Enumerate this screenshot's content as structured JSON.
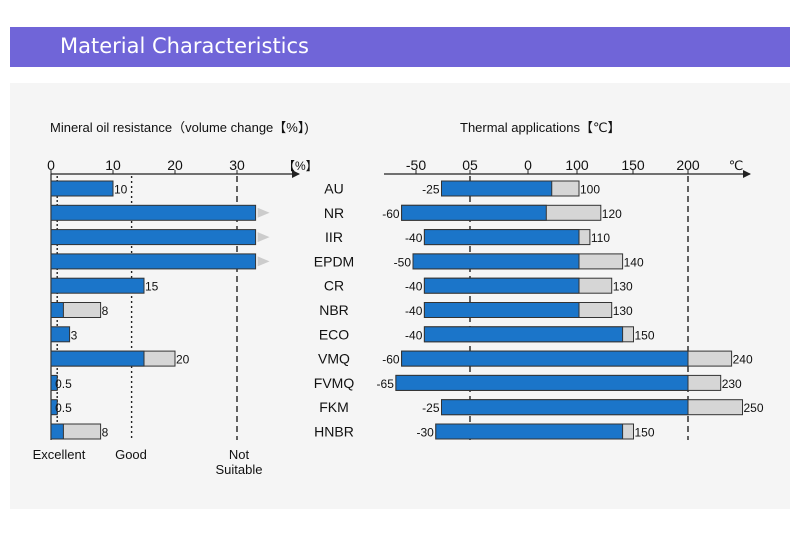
{
  "header": {
    "title": "Material Characteristics"
  },
  "colors": {
    "header_bg": "#7065d8",
    "bar_blue": "#1b75c9",
    "bar_gray": "#d6d6d6"
  },
  "chart_data": [
    {
      "type": "bar",
      "title": "Mineral oil resistance（volume change【%】)",
      "orientation": "horizontal",
      "unit_label": "【%】",
      "xlim": [
        0,
        35
      ],
      "x_ticks": [
        "0",
        "10",
        "20",
        "30"
      ],
      "thresholds": [
        {
          "value": 1,
          "label": "Excellent"
        },
        {
          "value": 13,
          "label": "Good"
        },
        {
          "value": 30,
          "label": "Not Suitable"
        }
      ],
      "categories": [
        "AU",
        "NR",
        "IIR",
        "EPDM",
        "CR",
        "NBR",
        "ECO",
        "VMQ",
        "FVMQ",
        "FKM",
        "HNBR"
      ],
      "series": [
        {
          "values": [
            10,
            null,
            null,
            null,
            15,
            2,
            3,
            15,
            1,
            1,
            2
          ]
        },
        {
          "values": [
            10,
            33,
            33,
            33,
            15,
            8,
            3,
            20,
            0.5,
            0.5,
            8
          ]
        }
      ],
      "value_labels": [
        "10",
        "",
        "",
        "",
        "15",
        "8",
        "3",
        "20",
        "0.5",
        "0.5",
        "8"
      ],
      "overflow": [
        false,
        true,
        true,
        true,
        false,
        false,
        false,
        false,
        false,
        false,
        false
      ]
    },
    {
      "type": "bar",
      "title": "Thermal applications【℃】",
      "orientation": "horizontal",
      "unit_label": "℃",
      "x_ticks": [
        "-50",
        "05",
        "0",
        "100",
        "150",
        "200"
      ],
      "categories": [
        "AU",
        "NR",
        "IIR",
        "EPDM",
        "CR",
        "NBR",
        "ECO",
        "VMQ",
        "FVMQ",
        "FKM",
        "HNBR"
      ],
      "min_temp": [
        -25,
        -60,
        -40,
        -50,
        -40,
        -40,
        -40,
        -60,
        -65,
        -25,
        -30
      ],
      "continuous_max": [
        75,
        70,
        100,
        100,
        100,
        100,
        140,
        200,
        200,
        200,
        140
      ],
      "short_term_max": [
        100,
        120,
        110,
        140,
        130,
        130,
        150,
        240,
        230,
        250,
        150
      ],
      "min_labels": [
        "-25",
        "-60",
        "-40",
        "-50",
        "-40",
        "-40",
        "-40",
        "-60",
        "-65",
        "-25",
        "-30"
      ],
      "max_labels": [
        "100",
        "120",
        "110",
        "140",
        "130",
        "130",
        "150",
        "240",
        "230",
        "250",
        "150"
      ]
    }
  ]
}
